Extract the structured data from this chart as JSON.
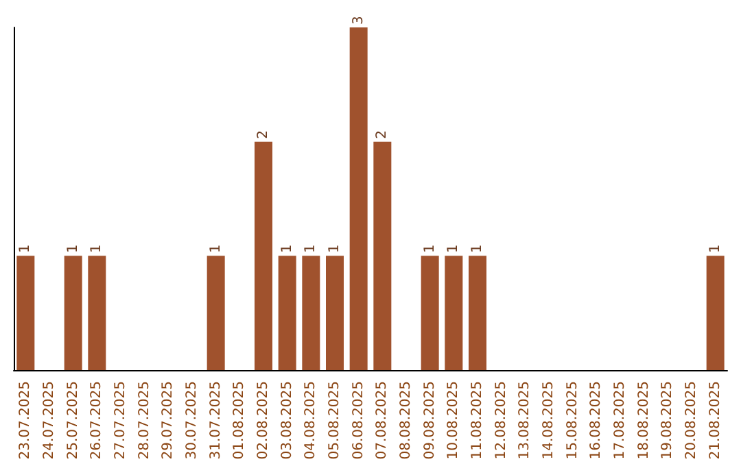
{
  "chart_data": {
    "type": "bar",
    "categories": [
      "23.07.2025",
      "24.07.2025",
      "25.07.2025",
      "26.07.2025",
      "27.07.2025",
      "28.07.2025",
      "29.07.2025",
      "30.07.2025",
      "31.07.2025",
      "01.08.2025",
      "02.08.2025",
      "03.08.2025",
      "04.08.2025",
      "05.08.2025",
      "06.08.2025",
      "07.08.2025",
      "08.08.2025",
      "09.08.2025",
      "10.08.2025",
      "11.08.2025",
      "12.08.2025",
      "13.08.2025",
      "14.08.2025",
      "15.08.2025",
      "16.08.2025",
      "17.08.2025",
      "18.08.2025",
      "19.08.2025",
      "20.08.2025",
      "21.08.2025"
    ],
    "values": [
      1,
      0,
      1,
      1,
      0,
      0,
      0,
      0,
      1,
      0,
      2,
      1,
      1,
      1,
      3,
      2,
      0,
      1,
      1,
      1,
      0,
      0,
      0,
      0,
      0,
      0,
      0,
      0,
      0,
      1
    ],
    "value_labels": [
      "1",
      null,
      "1",
      "1",
      null,
      null,
      null,
      null,
      "1",
      null,
      "2",
      "1",
      "1",
      "1",
      "3",
      "2",
      null,
      "1",
      "1",
      "1",
      null,
      null,
      null,
      null,
      null,
      null,
      null,
      null,
      null,
      "1"
    ],
    "color": "#a0522d",
    "ylim": [
      0,
      3
    ],
    "tick_labels": "x",
    "grid": false
  }
}
